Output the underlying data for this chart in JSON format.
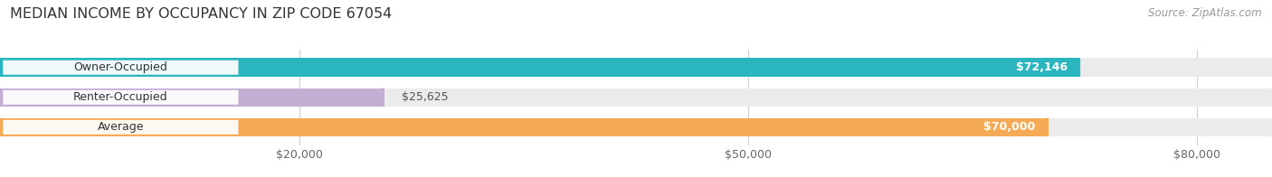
{
  "title": "MEDIAN INCOME BY OCCUPANCY IN ZIP CODE 67054",
  "source": "Source: ZipAtlas.com",
  "categories": [
    "Owner-Occupied",
    "Renter-Occupied",
    "Average"
  ],
  "values": [
    72146,
    25625,
    70000
  ],
  "bar_colors": [
    "#2ab5bf",
    "#c4aed4",
    "#f5ab55"
  ],
  "label_values": [
    "$72,146",
    "$25,625",
    "$70,000"
  ],
  "xlim": [
    0,
    85000
  ],
  "xticks": [
    20000,
    50000,
    80000
  ],
  "xtick_labels": [
    "$20,000",
    "$50,000",
    "$80,000"
  ],
  "background_color": "#ffffff",
  "bar_bg_color": "#ebebeb",
  "bar_height": 0.62,
  "title_fontsize": 11.5,
  "source_fontsize": 8.5,
  "label_fontsize": 9,
  "tick_fontsize": 9,
  "category_fontsize": 9
}
